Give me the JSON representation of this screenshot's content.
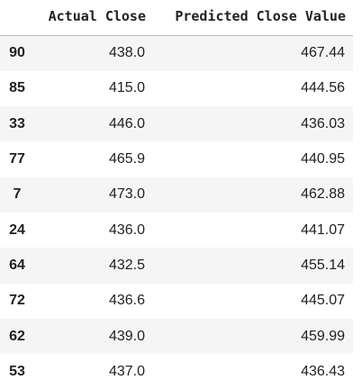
{
  "table": {
    "columns": [
      "Actual Close",
      "Predicted Close Value"
    ],
    "rows": [
      {
        "index": "90",
        "actual": "438.0",
        "predicted": "467.44"
      },
      {
        "index": "85",
        "actual": "415.0",
        "predicted": "444.56"
      },
      {
        "index": "33",
        "actual": "446.0",
        "predicted": "436.03"
      },
      {
        "index": "77",
        "actual": "465.9",
        "predicted": "440.95"
      },
      {
        "index": "7",
        "actual": "473.0",
        "predicted": "462.88"
      },
      {
        "index": "24",
        "actual": "436.0",
        "predicted": "441.07"
      },
      {
        "index": "64",
        "actual": "432.5",
        "predicted": "455.14"
      },
      {
        "index": "72",
        "actual": "436.6",
        "predicted": "445.07"
      },
      {
        "index": "62",
        "actual": "439.0",
        "predicted": "459.99"
      },
      {
        "index": "53",
        "actual": "437.0",
        "predicted": "436.43"
      }
    ]
  }
}
